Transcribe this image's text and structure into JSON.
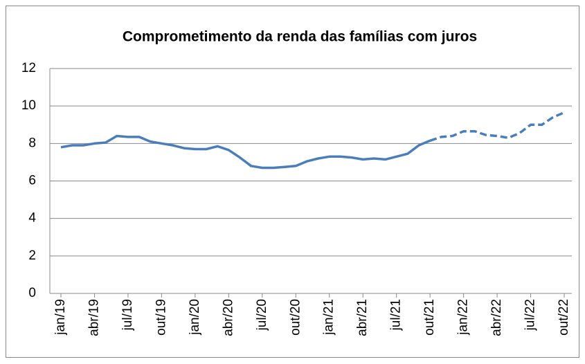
{
  "chart_data": {
    "type": "line",
    "title": "Comprometimento da renda das famílias com juros",
    "categories": [
      "jan/19",
      null,
      null,
      "abr/19",
      null,
      null,
      "jul/19",
      null,
      null,
      "out/19",
      null,
      null,
      "jan/20",
      null,
      null,
      "abr/20",
      null,
      null,
      "jul/20",
      null,
      null,
      "out/20",
      null,
      null,
      "jan/21",
      null,
      null,
      "abr/21",
      null,
      null,
      "jul/21",
      null,
      null,
      "out/21",
      null,
      null,
      "jan/22",
      null,
      null,
      "abr/22",
      null,
      null,
      "jul/22",
      null,
      null,
      "out/22"
    ],
    "series": [
      {
        "color": "#4a7ebb",
        "dashed": false,
        "values": [
          7.8,
          7.9,
          7.9,
          8.0,
          8.05,
          8.4,
          8.35,
          8.35,
          8.1,
          8.0,
          7.9,
          7.75,
          7.7,
          7.7,
          7.85,
          7.65,
          7.25,
          6.8,
          6.7,
          6.7,
          6.75,
          6.8,
          7.05,
          7.2,
          7.3,
          7.3,
          7.25,
          7.15,
          7.2,
          7.15,
          7.3,
          7.45,
          7.9,
          8.15,
          null,
          null,
          null,
          null,
          null,
          null,
          null,
          null,
          null,
          null,
          null,
          null
        ]
      },
      {
        "color": "#4a7ebb",
        "dashed": true,
        "values": [
          null,
          null,
          null,
          null,
          null,
          null,
          null,
          null,
          null,
          null,
          null,
          null,
          null,
          null,
          null,
          null,
          null,
          null,
          null,
          null,
          null,
          null,
          null,
          null,
          null,
          null,
          null,
          null,
          null,
          null,
          null,
          null,
          null,
          8.15,
          8.35,
          8.4,
          8.65,
          8.65,
          8.45,
          8.4,
          8.3,
          8.55,
          9.0,
          9.0,
          9.4,
          9.65
        ]
      }
    ],
    "ylim": [
      0,
      12
    ],
    "yticks": [
      0,
      2,
      4,
      6,
      8,
      10,
      12
    ],
    "grid": true
  }
}
